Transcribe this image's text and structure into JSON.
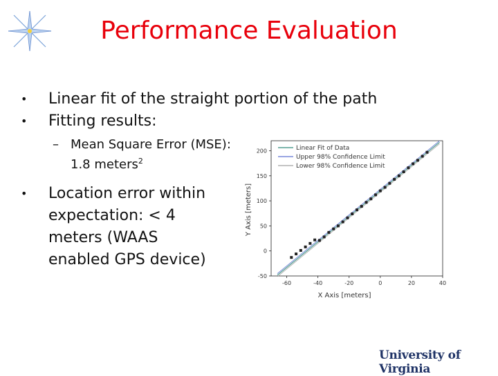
{
  "slide": {
    "title": "Performance Evaluation",
    "bullets": [
      {
        "text": "Linear fit of the straight portion of the path"
      },
      {
        "text": "Fitting results:"
      }
    ],
    "sub_bullet": {
      "text": "Mean Square Error (MSE): 1.8 meters",
      "superscript": "2"
    },
    "bullet3": {
      "lines": [
        "Location error within",
        "expectation: < 4",
        "meters (WAAS",
        "enabled GPS device)"
      ]
    },
    "logo": {
      "wordmark": "University of Virginia",
      "color": "#1f3366",
      "icon": "compass-star-icon"
    },
    "colors": {
      "title": "#e8000b",
      "fit_line": "#2e8b7a",
      "upper_limit": "#5a6fd0",
      "lower_limit": "#a0a0a0",
      "points": "#222222"
    }
  },
  "chart_data": {
    "type": "scatter",
    "xlabel": "X Axis [meters]",
    "ylabel": "Y Axis [meters]",
    "xlim": [
      -70,
      40
    ],
    "ylim": [
      -50,
      220
    ],
    "xticks": [
      "-60",
      "-40",
      "-20",
      "0",
      "20",
      "40"
    ],
    "yticks": [
      "-50",
      "0",
      "50",
      "100",
      "150",
      "200"
    ],
    "legend": [
      "Linear Fit of Data",
      "Upper 98% Confidence Limit",
      "Lower 98% Confidence Limit"
    ],
    "legend_position": "top-left",
    "fit": {
      "slope": 2.55,
      "intercept": 120,
      "x_range": [
        -66,
        38
      ]
    },
    "points": [
      {
        "x": -57,
        "y": -13
      },
      {
        "x": -54,
        "y": -6
      },
      {
        "x": -51,
        "y": 1
      },
      {
        "x": -48,
        "y": 8
      },
      {
        "x": -45,
        "y": 15
      },
      {
        "x": -42,
        "y": 22
      },
      {
        "x": -39,
        "y": 21
      },
      {
        "x": -36,
        "y": 28
      },
      {
        "x": -33,
        "y": 37
      },
      {
        "x": -30,
        "y": 44
      },
      {
        "x": -27,
        "y": 50
      },
      {
        "x": -24,
        "y": 58
      },
      {
        "x": -21,
        "y": 66
      },
      {
        "x": -18,
        "y": 74
      },
      {
        "x": -15,
        "y": 82
      },
      {
        "x": -12,
        "y": 89
      },
      {
        "x": -9,
        "y": 97
      },
      {
        "x": -6,
        "y": 104
      },
      {
        "x": -3,
        "y": 112
      },
      {
        "x": 0,
        "y": 120
      },
      {
        "x": 3,
        "y": 127
      },
      {
        "x": 6,
        "y": 135
      },
      {
        "x": 9,
        "y": 143
      },
      {
        "x": 12,
        "y": 150
      },
      {
        "x": 15,
        "y": 158
      },
      {
        "x": 18,
        "y": 166
      },
      {
        "x": 21,
        "y": 174
      },
      {
        "x": 24,
        "y": 181
      },
      {
        "x": 27,
        "y": 189
      },
      {
        "x": 30,
        "y": 197
      }
    ]
  }
}
